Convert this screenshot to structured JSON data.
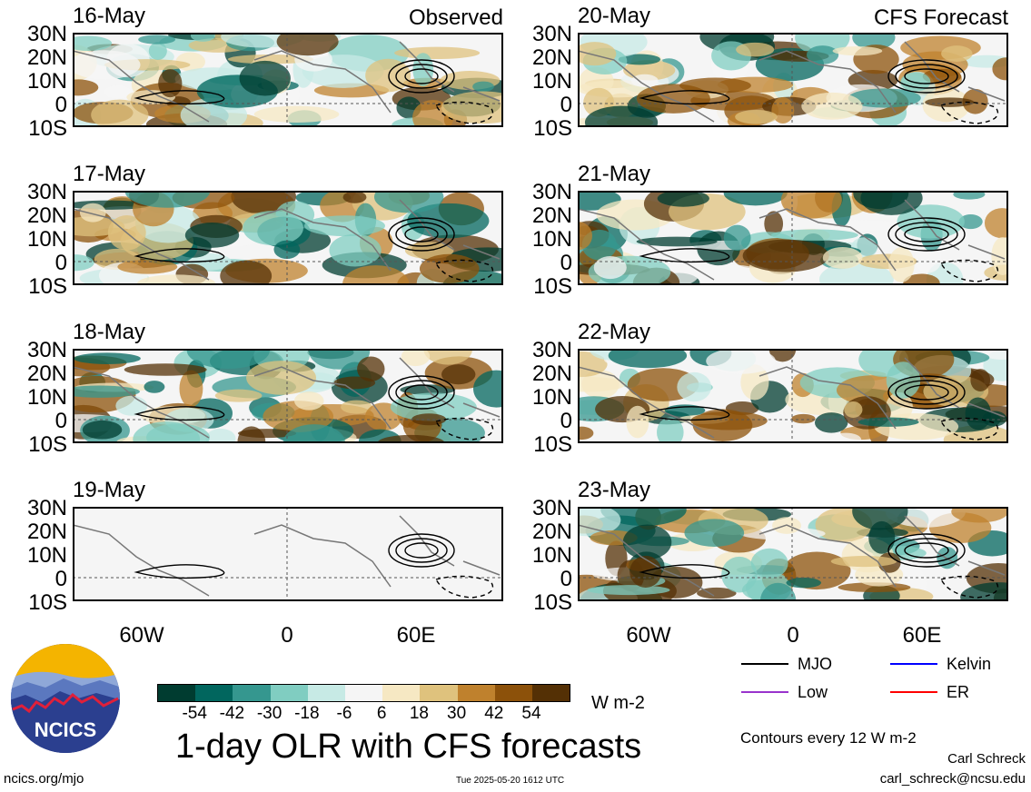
{
  "panels_left": [
    {
      "date": "16-May",
      "tag": "Observed"
    },
    {
      "date": "17-May",
      "tag": ""
    },
    {
      "date": "18-May",
      "tag": ""
    },
    {
      "date": "19-May",
      "tag": ""
    }
  ],
  "panels_right": [
    {
      "date": "20-May",
      "tag": "CFS Forecast"
    },
    {
      "date": "21-May",
      "tag": ""
    },
    {
      "date": "22-May",
      "tag": ""
    },
    {
      "date": "23-May",
      "tag": ""
    }
  ],
  "lat_labels": [
    "30N",
    "20N",
    "10N",
    "0",
    "10S"
  ],
  "lon_labels": [
    "60W",
    "0",
    "60E"
  ],
  "colorbar": {
    "ticks": [
      "-54",
      "-42",
      "-30",
      "-18",
      "-6",
      "6",
      "18",
      "30",
      "42",
      "54"
    ],
    "colors": [
      "#003c30",
      "#01665e",
      "#35978f",
      "#80cdc1",
      "#c7eae5",
      "#f5f5f5",
      "#f6e8c3",
      "#dfc27d",
      "#bf812d",
      "#8c510a",
      "#543005"
    ],
    "units": "W m-2"
  },
  "title": "1-day OLR with CFS forecasts",
  "legend": {
    "items": [
      {
        "label": "MJO",
        "color": "#000000"
      },
      {
        "label": "Kelvin",
        "color": "#0000ff"
      },
      {
        "label": "Low",
        "color": "#9933cc"
      },
      {
        "label": "ER",
        "color": "#ff0000"
      }
    ],
    "contour_note": "Contours every 12 W m-2"
  },
  "credits": {
    "author": "Carl Schreck",
    "email": "carl_schreck@ncsu.edu",
    "url": "ncics.org/mjo",
    "timestamp": "Tue 2025-05-20 1612 UTC",
    "logo_text": "NCICS"
  }
}
